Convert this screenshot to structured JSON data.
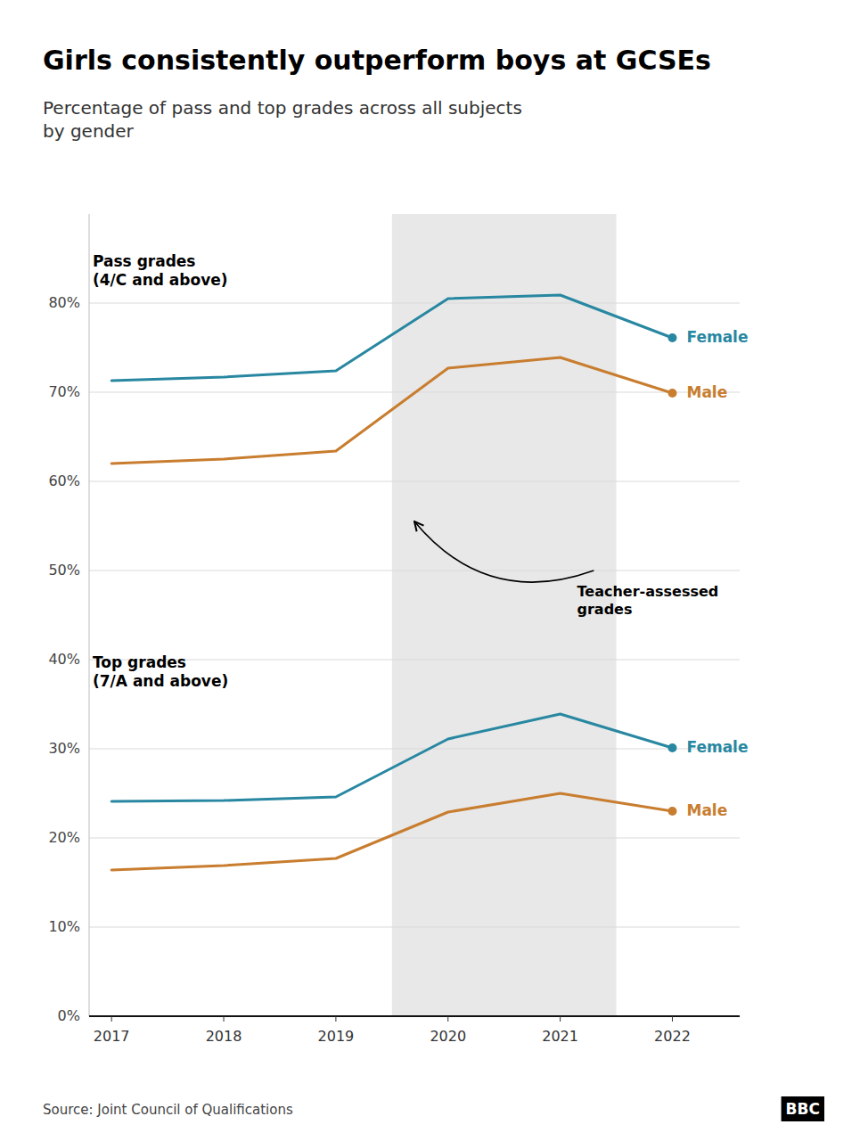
{
  "chart_data": {
    "type": "line",
    "title": "Girls consistently outperform boys at GCSEs",
    "subtitle": "Percentage of pass and top grades across all subjects\nby gender",
    "source": "Source: Joint Council of Qualifications",
    "logo": "BBC",
    "x": [
      2017,
      2018,
      2019,
      2020,
      2021,
      2022
    ],
    "series": [
      {
        "name": "Female",
        "color": "#2887a1",
        "values": [
          71.3,
          71.7,
          72.4,
          80.5,
          80.9,
          76.1
        ]
      },
      {
        "name": "Male",
        "color": "#c87d2f",
        "values": [
          62.0,
          62.5,
          63.4,
          72.7,
          73.9,
          69.9
        ]
      },
      {
        "name": "Female",
        "color": "#2887a1",
        "values": [
          24.1,
          24.2,
          24.6,
          31.1,
          33.9,
          30.1
        ]
      },
      {
        "name": "Male",
        "color": "#c87d2f",
        "values": [
          16.4,
          16.9,
          17.7,
          22.9,
          25.0,
          23.0
        ]
      }
    ],
    "group_labels": [
      "Pass grades\n(4/C and above)",
      "Top grades\n(7/A and above)"
    ],
    "shaded_region": {
      "x": [
        2019.5,
        2021.5
      ],
      "color": "#e8e8e8",
      "label": "Teacher-assessed\ngrades"
    },
    "xlim": [
      2016.8,
      2022.6
    ],
    "xticks": [
      2017,
      2018,
      2019,
      2020,
      2021,
      2022
    ],
    "ylim": [
      0,
      90
    ],
    "yticks": [
      {
        "value": 0,
        "label": "0%"
      },
      {
        "value": 10,
        "label": "10%"
      },
      {
        "value": 20,
        "label": "20%"
      },
      {
        "value": 30,
        "label": "30%"
      },
      {
        "value": 40,
        "label": "40%"
      },
      {
        "value": 50,
        "label": "50%"
      },
      {
        "value": 60,
        "label": "60%"
      },
      {
        "value": 70,
        "label": "70%"
      },
      {
        "value": 80,
        "label": "80%"
      }
    ],
    "grid": true
  }
}
